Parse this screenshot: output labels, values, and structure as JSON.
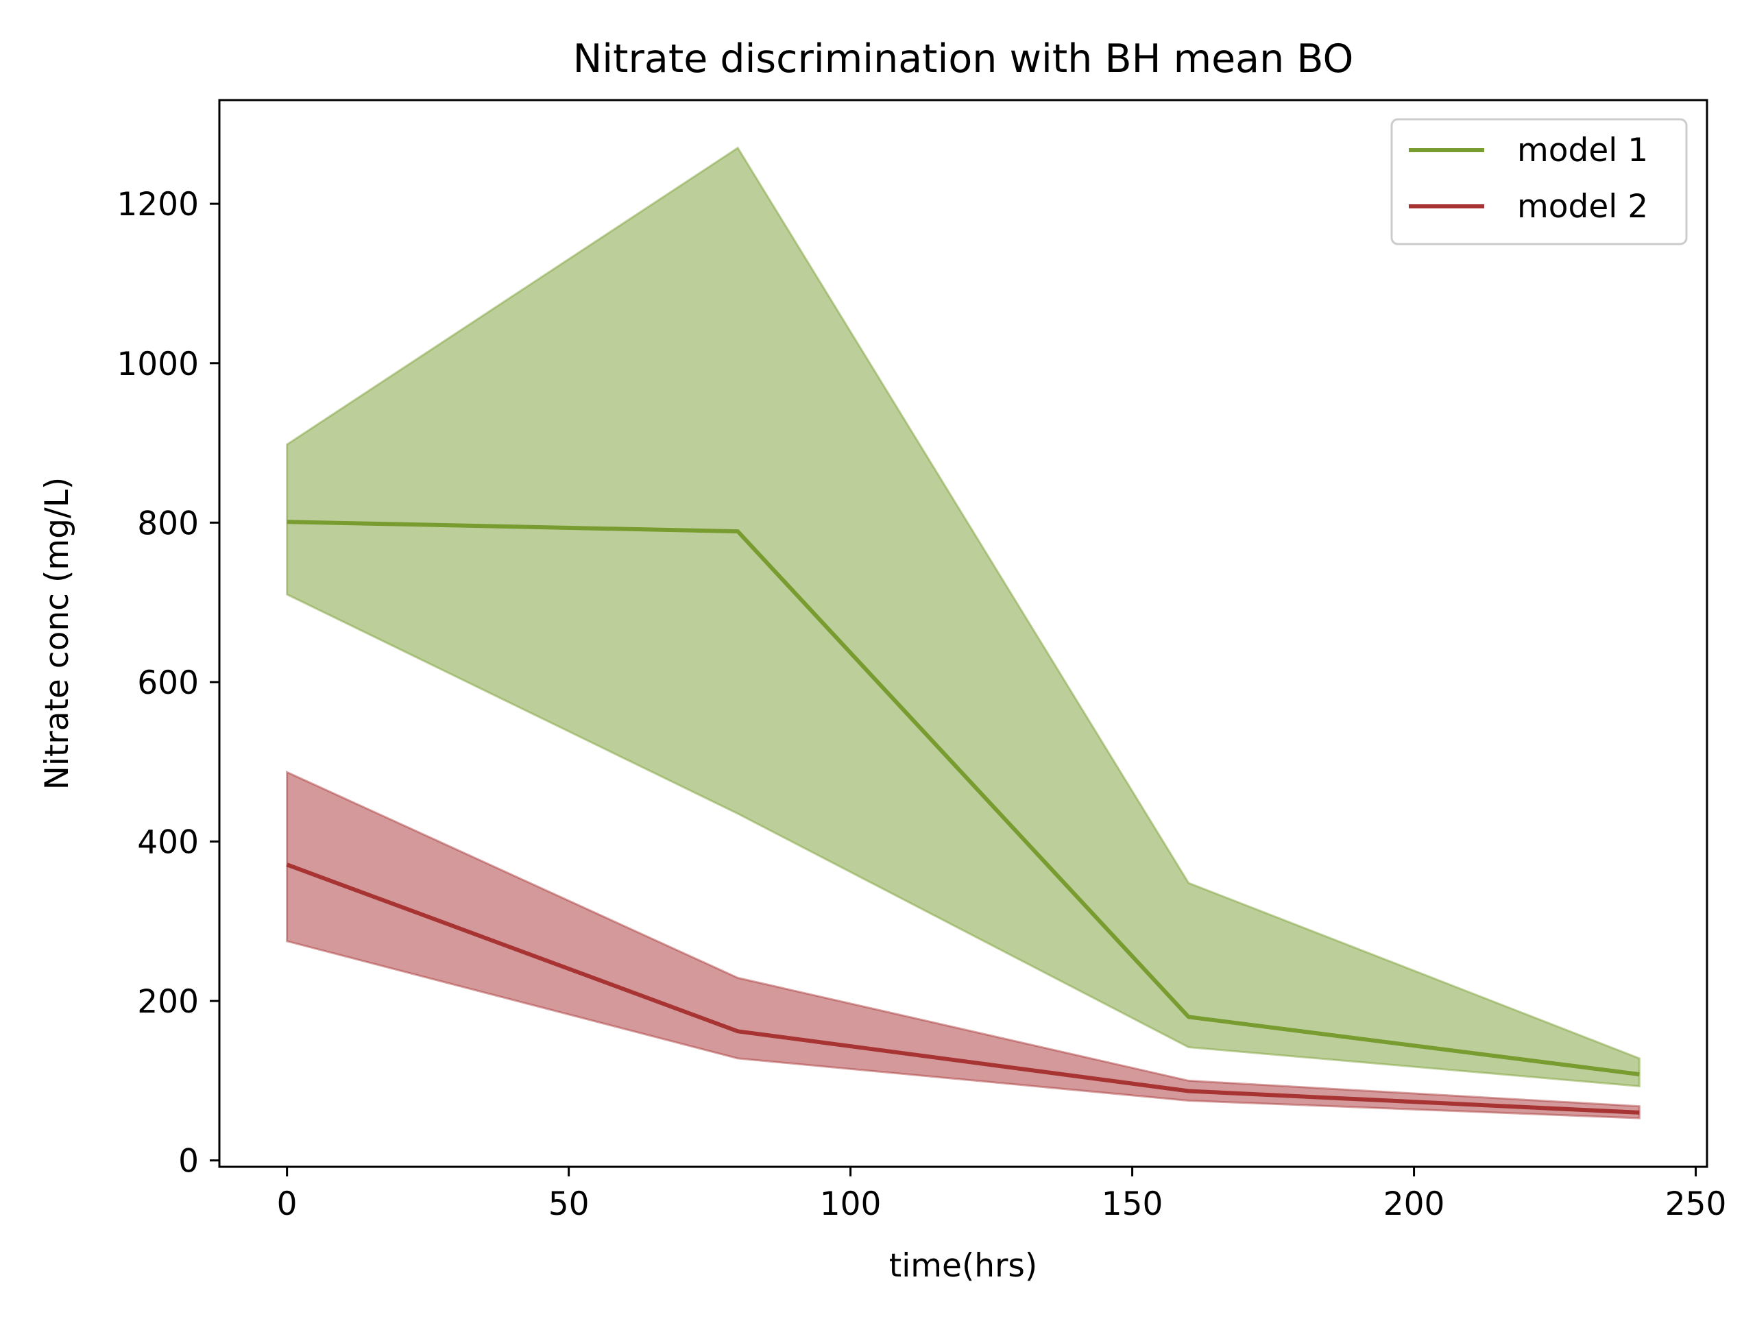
{
  "chart_data": {
    "type": "line",
    "title": "Nitrate discrimination with BH mean BO",
    "xlabel": "time(hrs)",
    "ylabel": "Nitrate conc (mg/L)",
    "xlim": [
      -12,
      252
    ],
    "ylim": [
      -8,
      1330
    ],
    "x_ticks": [
      0,
      50,
      100,
      150,
      200,
      250
    ],
    "y_ticks": [
      0,
      200,
      400,
      600,
      800,
      1000,
      1200
    ],
    "x_tick_labels": [
      "0",
      "50",
      "100",
      "150",
      "200",
      "250"
    ],
    "y_tick_labels": [
      "0",
      "200",
      "400",
      "600",
      "800",
      "1000",
      "1200"
    ],
    "grid": false,
    "legend_position": "top-right",
    "x": [
      0,
      80,
      160,
      240
    ],
    "series": [
      {
        "name": "model 1",
        "color": "#789c2f",
        "fill_color": "#bccf9a",
        "values": [
          801,
          789,
          180,
          108
        ],
        "lower": [
          710,
          435,
          142,
          93
        ],
        "upper": [
          898,
          1270,
          348,
          128
        ]
      },
      {
        "name": "model 2",
        "color": "#a83333",
        "fill_color": "#d49a9b",
        "values": [
          371,
          162,
          87,
          60
        ],
        "lower": [
          275,
          128,
          75,
          53
        ],
        "upper": [
          487,
          229,
          100,
          68
        ]
      }
    ]
  }
}
